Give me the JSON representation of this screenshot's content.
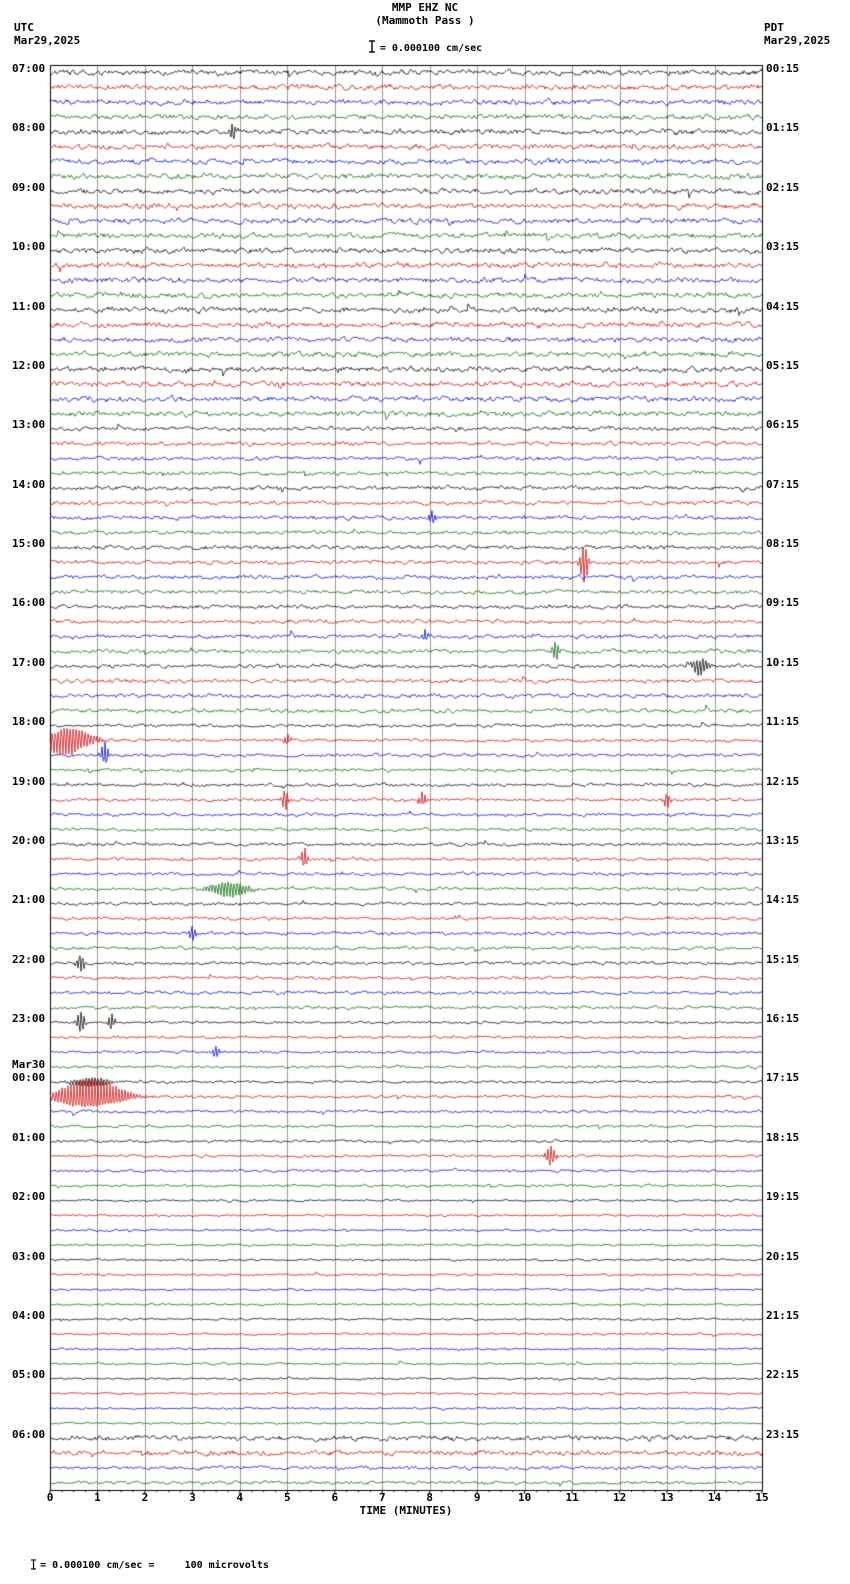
{
  "header": {
    "title_line1": "MMP EHZ NC",
    "title_line2": "(Mammoth Pass )",
    "tz_left": "UTC",
    "date_left": "Mar29,2025",
    "tz_right": "PDT",
    "date_right": "Mar29,2025",
    "scale_text": "= 0.000100 cm/sec"
  },
  "x_axis": {
    "title": "TIME (MINUTES)"
  },
  "footer": {
    "scale_text": "= 0.000100 cm/sec =     100 microvolts"
  },
  "chart_data": {
    "type": "line",
    "subtype": "helicorder-seismogram",
    "station": "MMP EHZ NC (Mammoth Pass)",
    "start_date_utc": "Mar29,2025",
    "minutes_per_row": 15,
    "traces_per_hour": 4,
    "total_rows": 96,
    "trace_colors": [
      "#000000",
      "#cc0000",
      "#0000cc",
      "#006600"
    ],
    "grid_color": "#a89484",
    "left_labels": [
      "07:00",
      "08:00",
      "09:00",
      "10:00",
      "11:00",
      "12:00",
      "13:00",
      "14:00",
      "15:00",
      "16:00",
      "17:00",
      "18:00",
      "19:00",
      "20:00",
      "21:00",
      "22:00",
      "23:00",
      "00:00",
      "01:00",
      "02:00",
      "03:00",
      "04:00",
      "05:00",
      "06:00"
    ],
    "right_labels": [
      "00:15",
      "01:15",
      "02:15",
      "03:15",
      "04:15",
      "05:15",
      "06:15",
      "07:15",
      "08:15",
      "09:15",
      "10:15",
      "11:15",
      "12:15",
      "13:15",
      "14:15",
      "15:15",
      "16:15",
      "17:15",
      "18:15",
      "19:15",
      "20:15",
      "21:15",
      "22:15",
      "23:15"
    ],
    "date_break": {
      "label": "Mar30",
      "left_label_index": 17
    },
    "x_ticks": [
      0,
      1,
      2,
      3,
      4,
      5,
      6,
      7,
      8,
      9,
      10,
      11,
      12,
      13,
      14,
      15
    ],
    "noise_profile": [
      {
        "from": 0,
        "to": 23,
        "amp": 2.0
      },
      {
        "from": 24,
        "to": 43,
        "amp": 1.5
      },
      {
        "from": 44,
        "to": 63,
        "amp": 1.2
      },
      {
        "from": 64,
        "to": 75,
        "amp": 1.0
      },
      {
        "from": 76,
        "to": 91,
        "amp": 0.8
      },
      {
        "from": 92,
        "to": 93,
        "amp": 1.9
      },
      {
        "from": 94,
        "to": 95,
        "amp": 1.3
      }
    ],
    "events": [
      {
        "row": 4,
        "minute": 3.85,
        "amp": 9,
        "dur": 0.05
      },
      {
        "row": 30,
        "minute": 8.05,
        "amp": 8,
        "dur": 0.05
      },
      {
        "row": 33,
        "minute": 11.25,
        "amp": 22,
        "dur": 0.06
      },
      {
        "row": 38,
        "minute": 7.9,
        "amp": 6,
        "dur": 0.05
      },
      {
        "row": 39,
        "minute": 10.65,
        "amp": 11,
        "dur": 0.05
      },
      {
        "row": 40,
        "minute": 13.7,
        "amp": 9,
        "dur": 0.12
      },
      {
        "row": 45,
        "minute": 0.35,
        "amp": 15,
        "dur": 0.35
      },
      {
        "row": 46,
        "minute": 1.15,
        "amp": 13,
        "dur": 0.06
      },
      {
        "row": 45,
        "minute": 5.0,
        "amp": 6,
        "dur": 0.05
      },
      {
        "row": 49,
        "minute": 4.95,
        "amp": 12,
        "dur": 0.05
      },
      {
        "row": 49,
        "minute": 7.85,
        "amp": 8,
        "dur": 0.06
      },
      {
        "row": 49,
        "minute": 13.0,
        "amp": 9,
        "dur": 0.05
      },
      {
        "row": 53,
        "minute": 5.35,
        "amp": 11,
        "dur": 0.05
      },
      {
        "row": 55,
        "minute": 3.75,
        "amp": 8,
        "dur": 0.3
      },
      {
        "row": 58,
        "minute": 3.0,
        "amp": 8,
        "dur": 0.05
      },
      {
        "row": 60,
        "minute": 0.65,
        "amp": 10,
        "dur": 0.06
      },
      {
        "row": 64,
        "minute": 0.65,
        "amp": 12,
        "dur": 0.06
      },
      {
        "row": 64,
        "minute": 1.3,
        "amp": 9,
        "dur": 0.05
      },
      {
        "row": 66,
        "minute": 3.5,
        "amp": 7,
        "dur": 0.05
      },
      {
        "row": 68,
        "minute": 0.85,
        "amp": 5,
        "dur": 0.3
      },
      {
        "row": 69,
        "minute": 0.85,
        "amp": 17,
        "dur": 0.5
      },
      {
        "row": 73,
        "minute": 10.55,
        "amp": 11,
        "dur": 0.07
      }
    ]
  }
}
